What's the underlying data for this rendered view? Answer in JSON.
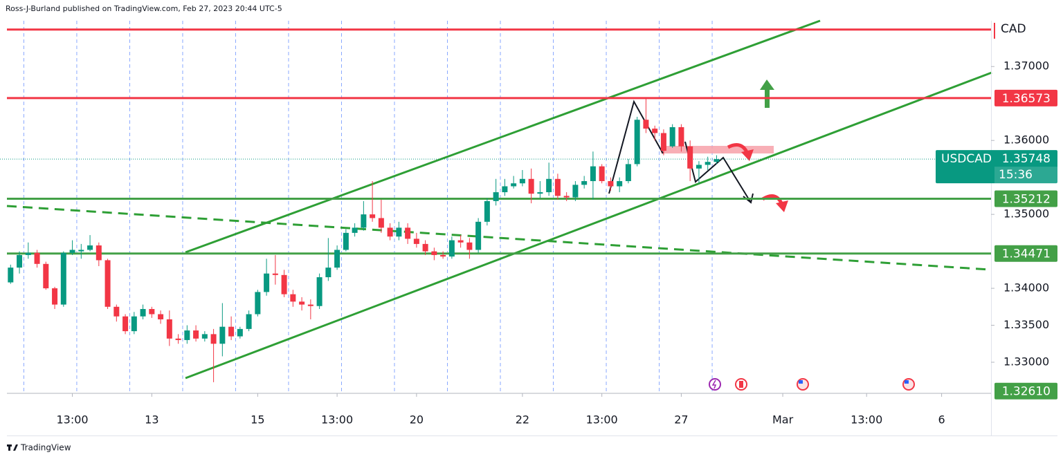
{
  "chart_data": {
    "type": "candlestick",
    "attribution": "Ross-J-Burland published on TradingView.com, Feb 27, 2023 20:44 UTC-5",
    "currency": "CAD",
    "footer": "TradingView",
    "up_color": "#089981",
    "down_color": "#f23645",
    "x": [
      0,
      1,
      2,
      3,
      4,
      5,
      6,
      7,
      8,
      9,
      10,
      11,
      12,
      13,
      14,
      15,
      16,
      17,
      18,
      19,
      20,
      21,
      22,
      23,
      24,
      25,
      26,
      27,
      28,
      29,
      30,
      31,
      32,
      33,
      34,
      35,
      36,
      37,
      38,
      39,
      40,
      41,
      42,
      43,
      44,
      45,
      46,
      47,
      48,
      49,
      50,
      51,
      52,
      53,
      54,
      55,
      56,
      57,
      58,
      59,
      60,
      61,
      62,
      63,
      64,
      65,
      66,
      67,
      68,
      69,
      70,
      71,
      72,
      73,
      74,
      75,
      76,
      77,
      78,
      79,
      80
    ],
    "open": [
      1.3408,
      1.3428,
      1.3445,
      1.3448,
      1.3433,
      1.34,
      1.3378,
      1.3448,
      1.345,
      1.3452,
      1.3458,
      1.3438,
      1.3375,
      1.3362,
      1.3342,
      1.3362,
      1.3372,
      1.3365,
      1.3358,
      1.3332,
      1.333,
      1.3343,
      1.3332,
      1.3338,
      1.3325,
      1.3348,
      1.3335,
      1.3345,
      1.3365,
      1.3395,
      1.342,
      1.3418,
      1.3392,
      1.3382,
      1.3378,
      1.3376,
      1.3415,
      1.3428,
      1.3452,
      1.3475,
      1.3482,
      1.35,
      1.3495,
      1.3482,
      1.347,
      1.3482,
      1.3467,
      1.346,
      1.345,
      1.3445,
      1.3443,
      1.3465,
      1.3462,
      1.3452,
      1.349,
      1.3518,
      1.353,
      1.3538,
      1.3542,
      1.3548,
      1.3528,
      1.353,
      1.3548,
      1.3525,
      1.3523,
      1.354,
      1.3545,
      1.3565,
      1.3545,
      1.3538,
      1.3545,
      1.3568,
      1.3628,
      1.3616,
      1.361,
      1.3592,
      1.3618,
      1.3592,
      1.3562,
      1.3567,
      1.3571
    ],
    "high": [
      1.3432,
      1.345,
      1.3462,
      1.3452,
      1.3436,
      1.3402,
      1.345,
      1.3465,
      1.346,
      1.3472,
      1.3462,
      1.344,
      1.3378,
      1.3365,
      1.3368,
      1.3378,
      1.3375,
      1.337,
      1.337,
      1.3338,
      1.335,
      1.335,
      1.3342,
      1.3345,
      1.338,
      1.3362,
      1.3348,
      1.337,
      1.3398,
      1.344,
      1.3445,
      1.3425,
      1.3398,
      1.3388,
      1.3385,
      1.342,
      1.3468,
      1.3458,
      1.348,
      1.3488,
      1.3518,
      1.3545,
      1.352,
      1.3488,
      1.349,
      1.3488,
      1.3475,
      1.3465,
      1.3455,
      1.345,
      1.347,
      1.3472,
      1.3468,
      1.3495,
      1.3522,
      1.3548,
      1.3548,
      1.3552,
      1.356,
      1.3562,
      1.3545,
      1.357,
      1.3555,
      1.353,
      1.3545,
      1.3552,
      1.3585,
      1.3568,
      1.355,
      1.355,
      1.3575,
      1.3632,
      1.3658,
      1.362,
      1.3615,
      1.3622,
      1.3622,
      1.36,
      1.3572,
      1.3578,
      1.358
    ],
    "low": [
      1.3406,
      1.342,
      1.344,
      1.3428,
      1.3398,
      1.3372,
      1.3375,
      1.3445,
      1.344,
      1.345,
      1.343,
      1.3372,
      1.3355,
      1.3338,
      1.3338,
      1.3358,
      1.336,
      1.3352,
      1.3322,
      1.3325,
      1.3325,
      1.3328,
      1.3328,
      1.3273,
      1.3308,
      1.333,
      1.3332,
      1.3342,
      1.3362,
      1.339,
      1.3405,
      1.3388,
      1.3375,
      1.337,
      1.3358,
      1.3372,
      1.341,
      1.3425,
      1.345,
      1.347,
      1.3478,
      1.349,
      1.3475,
      1.3465,
      1.3465,
      1.346,
      1.3455,
      1.3445,
      1.3438,
      1.344,
      1.344,
      1.3455,
      1.344,
      1.3448,
      1.3485,
      1.3512,
      1.3525,
      1.3535,
      1.3538,
      1.3515,
      1.3522,
      1.3525,
      1.352,
      1.3518,
      1.3518,
      1.3535,
      1.352,
      1.3542,
      1.3532,
      1.353,
      1.3542,
      1.3565,
      1.361,
      1.36,
      1.358,
      1.359,
      1.3585,
      1.3545,
      1.3542,
      1.356,
      1.3568
    ],
    "close": [
      1.3428,
      1.3445,
      1.3448,
      1.3433,
      1.34,
      1.3378,
      1.3448,
      1.3452,
      1.3452,
      1.3458,
      1.3438,
      1.3375,
      1.3362,
      1.3342,
      1.3362,
      1.3372,
      1.3365,
      1.3358,
      1.3332,
      1.333,
      1.3343,
      1.3332,
      1.3338,
      1.3325,
      1.3348,
      1.3335,
      1.3345,
      1.3365,
      1.3395,
      1.342,
      1.3418,
      1.3392,
      1.3382,
      1.3378,
      1.3376,
      1.3415,
      1.3428,
      1.3452,
      1.3475,
      1.3482,
      1.35,
      1.3495,
      1.3482,
      1.347,
      1.3482,
      1.3467,
      1.346,
      1.345,
      1.3445,
      1.3443,
      1.3465,
      1.3462,
      1.3452,
      1.349,
      1.3518,
      1.353,
      1.3538,
      1.3542,
      1.3548,
      1.3528,
      1.353,
      1.3548,
      1.3525,
      1.3523,
      1.354,
      1.3545,
      1.3565,
      1.3545,
      1.3538,
      1.3545,
      1.3568,
      1.3628,
      1.3616,
      1.361,
      1.3586,
      1.3618,
      1.3592,
      1.3562,
      1.3567,
      1.3571,
      1.35748
    ],
    "xlim": [
      -1.2,
      111.1
    ],
    "xticks": [
      {
        "value": 7,
        "label": "13:00"
      },
      {
        "value": 16,
        "label": "13"
      },
      {
        "value": 28,
        "label": "15"
      },
      {
        "value": 37,
        "label": "13:00"
      },
      {
        "value": 46,
        "label": "20"
      },
      {
        "value": 58,
        "label": "22"
      },
      {
        "value": 67,
        "label": "13:00"
      },
      {
        "value": 76,
        "label": "27"
      },
      {
        "value": 87.5,
        "label": "Mar"
      },
      {
        "value": 97,
        "label": "13:00"
      },
      {
        "value": 105.5,
        "label": "6"
      }
    ],
    "ylim": [
      1.3257,
      1.379
    ],
    "yticks": [
      {
        "value": 1.37,
        "label": "1.37000"
      },
      {
        "value": 1.36,
        "label": "1.36000"
      },
      {
        "value": 1.35,
        "label": "1.35000"
      },
      {
        "value": 1.34,
        "label": "1.34000"
      },
      {
        "value": 1.335,
        "label": "1.33500"
      },
      {
        "value": 1.33,
        "label": "1.33000"
      }
    ],
    "upper_level": {
      "price": 1.375,
      "color": "#f23645"
    },
    "price_labels": [
      {
        "price": 1.36573,
        "color": "#f23645",
        "line": true
      },
      {
        "price": 1.35212,
        "color": "#43a047",
        "line": true
      },
      {
        "price": 1.34471,
        "color": "#43a047",
        "line": true
      },
      {
        "price": {
          "value": 1.3261,
          "label": "1.32610"
        },
        "color": "#43a047",
        "line": false
      }
    ],
    "last": {
      "symbol": "USDCAD",
      "price": 1.35748,
      "countdown": "15:36",
      "color": "#089981"
    }
  }
}
